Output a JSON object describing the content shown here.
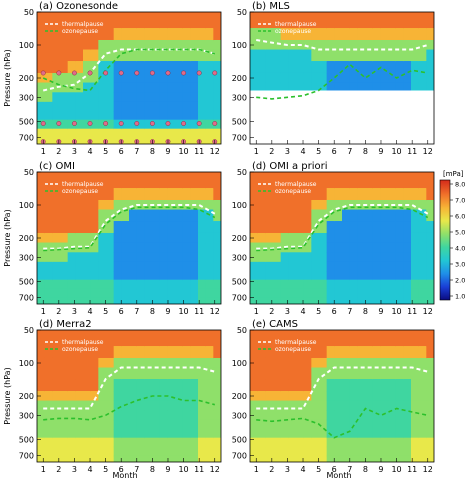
{
  "figure": {
    "months": [
      "1",
      "2",
      "3",
      "4",
      "5",
      "6",
      "7",
      "8",
      "9",
      "10",
      "11",
      "12"
    ],
    "ylabel": "Pressure (hPa)",
    "xlabel": "Month",
    "pressure_ticks": [
      "50",
      "100",
      "200",
      "300",
      "500",
      "700"
    ],
    "colorbar": {
      "unit": "[mPa]",
      "ticks": [
        "1.0",
        "2.0",
        "3.0",
        "4.0",
        "5.0",
        "6.0",
        "7.0",
        "8.0"
      ],
      "colors": [
        "#0b0b80",
        "#1a3fd6",
        "#1f8fe8",
        "#22c7d4",
        "#3fd6a0",
        "#8fe06a",
        "#e8e84a",
        "#f7b436",
        "#f0702a",
        "#d42a1a"
      ]
    },
    "legend": {
      "thermal": "thermalpause",
      "ozone": "ozonepause"
    }
  },
  "chart_data": [
    {
      "panel": "(a) Ozonesonde",
      "type": "heatmap",
      "title": "(a) Ozonesonde",
      "x": [
        1,
        2,
        3,
        4,
        5,
        6,
        7,
        8,
        9,
        10,
        11,
        12
      ],
      "xlim": [
        0.6,
        12.4
      ],
      "ylim_hPa": [
        800,
        50
      ],
      "thermalpause": [
        260,
        240,
        230,
        180,
        120,
        110,
        110,
        110,
        110,
        110,
        110,
        120
      ],
      "ozonepause": [
        200,
        230,
        250,
        260,
        170,
        120,
        110,
        110,
        110,
        110,
        110,
        120
      ]
    },
    {
      "panel": "(b) MLS",
      "type": "heatmap",
      "title": "(b) MLS",
      "x": [
        1,
        2,
        3,
        4,
        5,
        6,
        7,
        8,
        9,
        10,
        11,
        12
      ],
      "xlim": [
        0.6,
        12.4
      ],
      "ylim_hPa": [
        800,
        50
      ],
      "thermalpause": [
        90,
        95,
        100,
        100,
        110,
        110,
        110,
        110,
        110,
        110,
        110,
        100
      ],
      "ozonepause": [
        300,
        310,
        300,
        290,
        260,
        200,
        150,
        200,
        160,
        200,
        170,
        180
      ]
    },
    {
      "panel": "(c) OMI",
      "type": "heatmap",
      "title": "(c) OMI",
      "x": [
        1,
        2,
        3,
        4,
        5,
        6,
        7,
        8,
        9,
        10,
        11,
        12
      ],
      "xlim": [
        0.6,
        12.4
      ],
      "ylim_hPa": [
        800,
        50
      ],
      "thermalpause": [
        250,
        250,
        240,
        240,
        140,
        110,
        100,
        100,
        100,
        100,
        100,
        120
      ],
      "ozonepause": [
        260,
        255,
        250,
        245,
        150,
        115,
        105,
        105,
        105,
        105,
        110,
        130
      ]
    },
    {
      "panel": "(d) OMI a priori",
      "type": "heatmap",
      "title": "(d) OMI a priori",
      "x": [
        1,
        2,
        3,
        4,
        5,
        6,
        7,
        8,
        9,
        10,
        11,
        12
      ],
      "xlim": [
        0.6,
        12.4
      ],
      "ylim_hPa": [
        800,
        50
      ],
      "thermalpause": [
        250,
        250,
        240,
        240,
        140,
        110,
        100,
        100,
        100,
        100,
        100,
        120
      ],
      "ozonepause": [
        260,
        255,
        250,
        245,
        150,
        115,
        105,
        105,
        105,
        105,
        110,
        130
      ]
    },
    {
      "panel": "(d) Merra2",
      "type": "heatmap",
      "title": "(d) Merra2",
      "x": [
        1,
        2,
        3,
        4,
        5,
        6,
        7,
        8,
        9,
        10,
        11,
        12
      ],
      "xlim": [
        0.6,
        12.4
      ],
      "ylim_hPa": [
        800,
        50
      ],
      "thermalpause": [
        260,
        260,
        260,
        260,
        140,
        110,
        110,
        110,
        110,
        110,
        110,
        120
      ],
      "ozonepause": [
        330,
        320,
        320,
        330,
        300,
        250,
        220,
        200,
        200,
        220,
        220,
        240
      ]
    },
    {
      "panel": "(e) CAMS",
      "type": "heatmap",
      "title": "(e) CAMS",
      "x": [
        1,
        2,
        3,
        4,
        5,
        6,
        7,
        8,
        9,
        10,
        11,
        12
      ],
      "xlim": [
        0.6,
        12.4
      ],
      "ylim_hPa": [
        800,
        50
      ],
      "thermalpause": [
        260,
        260,
        260,
        260,
        140,
        110,
        110,
        110,
        110,
        110,
        110,
        120
      ],
      "ozonepause": [
        330,
        340,
        330,
        320,
        360,
        480,
        420,
        260,
        300,
        260,
        280,
        300
      ]
    }
  ]
}
